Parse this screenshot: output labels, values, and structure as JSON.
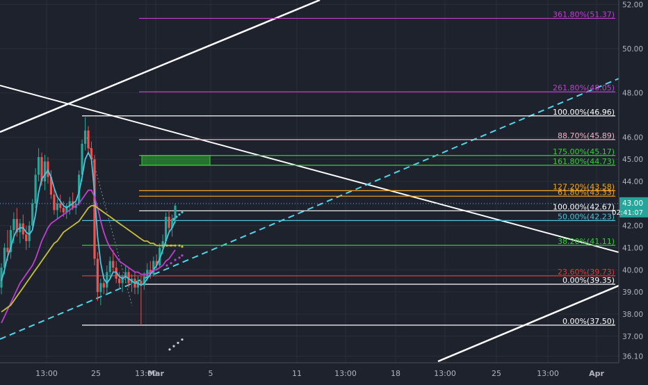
{
  "chart_data": {
    "type": "candlestick",
    "y_axis": {
      "min": 35.8,
      "max": 52.2,
      "ticks": [
        "52.00",
        "50.00",
        "48.00",
        "46.00",
        "45.00",
        "44.00",
        "42.00",
        "41.00",
        "40.00",
        "39.00",
        "38.00",
        "37.00",
        "36.10"
      ],
      "current_price": "43.00",
      "countdown": "02:41:07"
    },
    "x_axis": {
      "ticks": [
        "13:00",
        "25",
        "13:00",
        "Mar",
        "5",
        "11",
        "13:00",
        "18",
        "13:00",
        "25",
        "13:00",
        "Apr"
      ]
    },
    "fib_levels": [
      {
        "label": "361.80%(51.37)",
        "value": 51.37,
        "color": "#c03fd0",
        "span": "upper"
      },
      {
        "label": "261.80%(48.05)",
        "value": 48.05,
        "color": "#c03fd0",
        "span": "upper"
      },
      {
        "label": "100.00%(46.96)",
        "value": 46.96,
        "color": "#ffffff",
        "span": "long"
      },
      {
        "label": "88.70%(45.89)",
        "value": 45.89,
        "color": "#f2b5c7",
        "span": "upper"
      },
      {
        "label": "175.00%(45.17)",
        "value": 45.17,
        "color": "#36d036",
        "span": "upper"
      },
      {
        "label": "161.80%(44.73)",
        "value": 44.73,
        "color": "#36d036",
        "span": "upper"
      },
      {
        "label": "127.20%(43.58)",
        "value": 43.58,
        "color": "#f5a623",
        "span": "upper"
      },
      {
        "label": "61.80%(43.33)",
        "value": 43.33,
        "color": "#f5a623",
        "span": "upper"
      },
      {
        "label": "100.00%(42.67)",
        "value": 42.67,
        "color": "#ffffff",
        "span": "mid"
      },
      {
        "label": "50.00%(42.23)",
        "value": 42.23,
        "color": "#4fc3dc",
        "span": "long"
      },
      {
        "label": "38.20%(41.11)",
        "value": 41.11,
        "color": "#36d036",
        "span": "long"
      },
      {
        "label": "23.60%(39.73)",
        "value": 39.73,
        "color": "#e53935",
        "span": "long"
      },
      {
        "label": "0.00%(39.35)",
        "value": 39.35,
        "color": "#ffffff",
        "span": "mid"
      },
      {
        "label": "0.00%(37.50)",
        "value": 37.5,
        "color": "#ffffff",
        "span": "long"
      }
    ],
    "candles": [
      {
        "o": 39.2,
        "h": 40.3,
        "l": 38.9,
        "c": 40.1
      },
      {
        "o": 40.1,
        "h": 41.2,
        "l": 39.8,
        "c": 41.0
      },
      {
        "o": 41.0,
        "h": 41.8,
        "l": 40.4,
        "c": 40.8
      },
      {
        "o": 40.8,
        "h": 42.0,
        "l": 40.5,
        "c": 41.8
      },
      {
        "o": 41.8,
        "h": 42.6,
        "l": 41.2,
        "c": 42.3
      },
      {
        "o": 42.3,
        "h": 42.8,
        "l": 41.5,
        "c": 41.7
      },
      {
        "o": 41.7,
        "h": 42.3,
        "l": 41.2,
        "c": 42.1
      },
      {
        "o": 42.1,
        "h": 42.5,
        "l": 41.4,
        "c": 41.6
      },
      {
        "o": 41.6,
        "h": 42.0,
        "l": 40.9,
        "c": 41.3
      },
      {
        "o": 41.3,
        "h": 42.2,
        "l": 41.0,
        "c": 42.0
      },
      {
        "o": 42.0,
        "h": 43.2,
        "l": 41.8,
        "c": 43.0
      },
      {
        "o": 43.0,
        "h": 44.6,
        "l": 42.8,
        "c": 44.3
      },
      {
        "o": 44.3,
        "h": 45.5,
        "l": 44.0,
        "c": 45.1
      },
      {
        "o": 45.1,
        "h": 45.3,
        "l": 43.8,
        "c": 44.0
      },
      {
        "o": 44.0,
        "h": 45.2,
        "l": 43.6,
        "c": 44.9
      },
      {
        "o": 44.9,
        "h": 45.1,
        "l": 43.9,
        "c": 44.2
      },
      {
        "o": 44.2,
        "h": 44.5,
        "l": 43.2,
        "c": 43.4
      },
      {
        "o": 43.4,
        "h": 43.7,
        "l": 42.5,
        "c": 42.7
      },
      {
        "o": 42.7,
        "h": 43.2,
        "l": 42.3,
        "c": 43.0
      },
      {
        "o": 43.0,
        "h": 43.4,
        "l": 42.6,
        "c": 42.8
      },
      {
        "o": 42.8,
        "h": 43.1,
        "l": 42.4,
        "c": 42.6
      },
      {
        "o": 42.6,
        "h": 43.0,
        "l": 42.3,
        "c": 42.9
      },
      {
        "o": 42.9,
        "h": 43.3,
        "l": 42.5,
        "c": 43.1
      },
      {
        "o": 43.1,
        "h": 43.5,
        "l": 42.7,
        "c": 42.8
      },
      {
        "o": 42.8,
        "h": 43.1,
        "l": 42.5,
        "c": 43.0
      },
      {
        "o": 43.0,
        "h": 44.5,
        "l": 42.9,
        "c": 44.3
      },
      {
        "o": 44.3,
        "h": 45.9,
        "l": 44.0,
        "c": 45.7
      },
      {
        "o": 45.7,
        "h": 46.9,
        "l": 45.4,
        "c": 46.3
      },
      {
        "o": 46.3,
        "h": 46.5,
        "l": 45.3,
        "c": 45.5
      },
      {
        "o": 45.5,
        "h": 45.8,
        "l": 44.8,
        "c": 45.0
      },
      {
        "o": 45.0,
        "h": 45.2,
        "l": 40.2,
        "c": 40.5
      },
      {
        "o": 40.5,
        "h": 40.8,
        "l": 38.6,
        "c": 39.0
      },
      {
        "o": 39.0,
        "h": 39.6,
        "l": 38.4,
        "c": 39.4
      },
      {
        "o": 39.4,
        "h": 39.8,
        "l": 38.9,
        "c": 39.2
      },
      {
        "o": 39.2,
        "h": 40.2,
        "l": 38.9,
        "c": 39.9
      },
      {
        "o": 39.9,
        "h": 40.6,
        "l": 39.6,
        "c": 40.4
      },
      {
        "o": 40.4,
        "h": 40.9,
        "l": 39.9,
        "c": 40.1
      },
      {
        "o": 40.1,
        "h": 40.4,
        "l": 39.4,
        "c": 39.6
      },
      {
        "o": 39.6,
        "h": 39.9,
        "l": 39.1,
        "c": 39.4
      },
      {
        "o": 39.4,
        "h": 39.8,
        "l": 39.0,
        "c": 39.7
      },
      {
        "o": 39.7,
        "h": 40.2,
        "l": 39.4,
        "c": 39.9
      },
      {
        "o": 39.9,
        "h": 40.1,
        "l": 39.2,
        "c": 39.4
      },
      {
        "o": 39.4,
        "h": 39.8,
        "l": 39.0,
        "c": 39.6
      },
      {
        "o": 39.6,
        "h": 39.9,
        "l": 38.9,
        "c": 39.2
      },
      {
        "o": 39.2,
        "h": 39.7,
        "l": 38.9,
        "c": 39.5
      },
      {
        "o": 39.5,
        "h": 39.7,
        "l": 37.5,
        "c": 39.3
      },
      {
        "o": 39.3,
        "h": 39.9,
        "l": 39.1,
        "c": 39.7
      },
      {
        "o": 39.7,
        "h": 40.3,
        "l": 39.5,
        "c": 40.0
      },
      {
        "o": 40.0,
        "h": 40.4,
        "l": 39.6,
        "c": 39.8
      },
      {
        "o": 39.8,
        "h": 40.6,
        "l": 39.7,
        "c": 40.4
      },
      {
        "o": 40.4,
        "h": 40.7,
        "l": 40.0,
        "c": 40.2
      },
      {
        "o": 40.2,
        "h": 41.2,
        "l": 40.1,
        "c": 41.0
      },
      {
        "o": 41.0,
        "h": 41.6,
        "l": 40.7,
        "c": 41.3
      },
      {
        "o": 41.3,
        "h": 42.6,
        "l": 41.1,
        "c": 42.4
      },
      {
        "o": 42.4,
        "h": 42.7,
        "l": 41.7,
        "c": 41.9
      },
      {
        "o": 41.9,
        "h": 42.5,
        "l": 41.5,
        "c": 42.3
      },
      {
        "o": 42.3,
        "h": 43.0,
        "l": 42.1,
        "c": 42.9
      }
    ],
    "moving_averages": [
      {
        "name": "teal",
        "color": "#4fc3dc",
        "values": [
          39.5,
          40.0,
          40.6,
          41.0,
          41.5,
          41.8,
          41.9,
          41.9,
          41.7,
          41.6,
          41.8,
          42.5,
          43.5,
          44.1,
          44.3,
          44.5,
          44.2,
          43.7,
          43.3,
          43.1,
          42.9,
          42.8,
          42.9,
          43.0,
          43.1,
          43.5,
          44.2,
          45.0,
          45.3,
          45.0,
          43.5,
          41.5,
          40.3,
          39.6,
          39.4,
          39.6,
          39.9,
          39.9,
          39.7,
          39.6,
          39.7,
          39.6,
          39.5,
          39.4,
          39.4,
          39.3,
          39.4,
          39.6,
          39.8,
          40.0,
          40.2,
          40.5,
          40.9,
          41.3,
          41.7,
          41.9,
          42.2
        ]
      },
      {
        "name": "magenta",
        "color": "#c03fd0",
        "values": [
          37.6,
          37.9,
          38.2,
          38.5,
          38.8,
          39.1,
          39.4,
          39.6,
          39.8,
          40.0,
          40.2,
          40.5,
          40.9,
          41.3,
          41.6,
          41.9,
          42.1,
          42.2,
          42.3,
          42.4,
          42.5,
          42.6,
          42.7,
          42.8,
          42.9,
          43.0,
          43.2,
          43.4,
          43.6,
          43.6,
          43.3,
          42.8,
          42.2,
          41.7,
          41.3,
          41.0,
          40.8,
          40.6,
          40.4,
          40.3,
          40.2,
          40.1,
          40.0,
          39.9,
          39.9,
          39.8,
          39.8,
          39.8,
          39.9,
          40.0,
          40.0,
          40.1,
          40.2,
          40.4,
          40.5,
          40.7,
          40.9
        ]
      },
      {
        "name": "olive",
        "color": "#c9c03a",
        "values": [
          38.1,
          38.2,
          38.3,
          38.4,
          38.6,
          38.8,
          39.0,
          39.2,
          39.4,
          39.6,
          39.8,
          40.0,
          40.2,
          40.4,
          40.6,
          40.8,
          41.0,
          41.2,
          41.3,
          41.5,
          41.7,
          41.8,
          41.9,
          42.0,
          42.1,
          42.2,
          42.4,
          42.6,
          42.8,
          42.9,
          42.9,
          42.8,
          42.7,
          42.6,
          42.5,
          42.4,
          42.3,
          42.2,
          42.1,
          42.0,
          41.9,
          41.8,
          41.7,
          41.6,
          41.5,
          41.4,
          41.3,
          41.3,
          41.2,
          41.2,
          41.1,
          41.1,
          41.1,
          41.1,
          41.1,
          41.1,
          41.1
        ]
      }
    ]
  }
}
